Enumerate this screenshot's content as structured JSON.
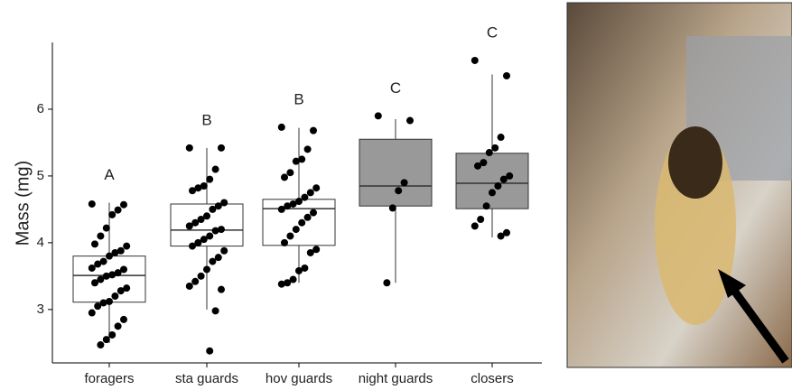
{
  "chart_data": {
    "type": "box",
    "y_label": "Mass (mg)",
    "categories": [
      "foragers",
      "sta guards",
      "hov guards",
      "night guards",
      "closers"
    ],
    "letters": [
      "A",
      "B",
      "B",
      "C",
      "C"
    ],
    "ylim": [
      2.2,
      7.0
    ],
    "yticks": [
      3,
      4,
      5,
      6
    ],
    "boxes": [
      {
        "q1": 3.11,
        "median": 3.51,
        "q3": 3.8,
        "whisker_low": 2.5,
        "whisker_high": 4.6,
        "fill": "#ffffff"
      },
      {
        "q1": 3.95,
        "median": 4.19,
        "q3": 4.58,
        "whisker_low": 3.0,
        "whisker_high": 5.42,
        "fill": "#ffffff"
      },
      {
        "q1": 3.96,
        "median": 4.51,
        "q3": 4.65,
        "whisker_low": 3.4,
        "whisker_high": 5.72,
        "fill": "#ffffff"
      },
      {
        "q1": 4.55,
        "median": 4.85,
        "q3": 5.55,
        "whisker_low": 3.4,
        "whisker_high": 5.85,
        "fill": "#999999"
      },
      {
        "q1": 4.51,
        "median": 4.89,
        "q3": 5.34,
        "whisker_low": 4.08,
        "whisker_high": 6.52,
        "fill": "#999999"
      }
    ],
    "points": [
      [
        4.58,
        4.57,
        4.49,
        4.42,
        4.22,
        4.1,
        3.98,
        3.95,
        3.88,
        3.85,
        3.8,
        3.72,
        3.68,
        3.62,
        3.6,
        3.55,
        3.52,
        3.5,
        3.45,
        3.4,
        3.32,
        3.28,
        3.2,
        3.12,
        3.1,
        3.05,
        2.95,
        2.85,
        2.75,
        2.62,
        2.55,
        2.47
      ],
      [
        5.42,
        5.42,
        5.1,
        4.95,
        4.85,
        4.82,
        4.78,
        4.6,
        4.55,
        4.5,
        4.4,
        4.35,
        4.3,
        4.25,
        4.2,
        4.18,
        4.1,
        4.05,
        4.0,
        3.95,
        3.88,
        3.78,
        3.72,
        3.6,
        3.5,
        3.42,
        3.35,
        3.3,
        2.98,
        2.38
      ],
      [
        5.73,
        5.68,
        5.4,
        5.25,
        5.22,
        5.05,
        4.98,
        4.82,
        4.75,
        4.68,
        4.62,
        4.58,
        4.55,
        4.5,
        4.45,
        4.38,
        4.3,
        4.2,
        4.1,
        4.0,
        3.9,
        3.85,
        3.62,
        3.58,
        3.45,
        3.4,
        3.38
      ],
      [
        5.9,
        5.83,
        4.9,
        4.78,
        4.52,
        3.4
      ],
      [
        6.73,
        6.5,
        5.58,
        5.42,
        5.35,
        5.2,
        5.15,
        5.0,
        4.95,
        4.85,
        4.75,
        4.55,
        4.35,
        4.25,
        4.15,
        4.1
      ]
    ],
    "point_color": "#000000"
  }
}
